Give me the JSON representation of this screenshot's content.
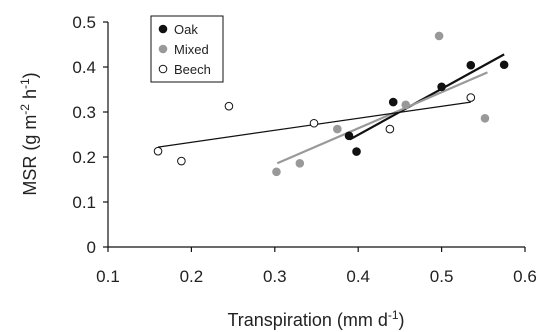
{
  "chart_data": {
    "type": "scatter",
    "title": "",
    "xlabel": {
      "main": "Transpiration (mm d",
      "sup": "-1",
      "close": ")"
    },
    "ylabel": {
      "main": "MSR (g m",
      "sup1": "-2",
      "mid": " h",
      "sup2": "-1",
      "close": ")"
    },
    "xlim": [
      0.1,
      0.6
    ],
    "ylim": [
      0,
      0.5
    ],
    "x_ticks": [
      "0.1",
      "0.2",
      "0.3",
      "0.4",
      "0.5",
      "0.6"
    ],
    "y_ticks": [
      "0",
      "0.1",
      "0.2",
      "0.3",
      "0.4",
      "0.5"
    ],
    "grid": false,
    "legend_position": "top-left",
    "series": [
      {
        "name": "Oak",
        "marker_fill": "#111111",
        "marker_stroke": "#111111",
        "line_color": "#111111",
        "points": [
          {
            "x": 0.389,
            "y": 0.247
          },
          {
            "x": 0.398,
            "y": 0.212
          },
          {
            "x": 0.442,
            "y": 0.322
          },
          {
            "x": 0.5,
            "y": 0.356
          },
          {
            "x": 0.535,
            "y": 0.404
          },
          {
            "x": 0.575,
            "y": 0.405
          }
        ],
        "fit": {
          "x": [
            0.39,
            0.575
          ],
          "y": [
            0.239,
            0.428
          ]
        }
      },
      {
        "name": "Mixed",
        "marker_fill": "#999999",
        "marker_stroke": "#999999",
        "line_color": "#999999",
        "points": [
          {
            "x": 0.302,
            "y": 0.167
          },
          {
            "x": 0.33,
            "y": 0.186
          },
          {
            "x": 0.375,
            "y": 0.262
          },
          {
            "x": 0.457,
            "y": 0.316
          },
          {
            "x": 0.497,
            "y": 0.469
          },
          {
            "x": 0.552,
            "y": 0.286
          }
        ],
        "fit": {
          "x": [
            0.303,
            0.555
          ],
          "y": [
            0.186,
            0.388
          ]
        }
      },
      {
        "name": "Beech",
        "marker_fill": "#ffffff",
        "marker_stroke": "#111111",
        "line_color": "#111111",
        "points": [
          {
            "x": 0.16,
            "y": 0.213
          },
          {
            "x": 0.188,
            "y": 0.191
          },
          {
            "x": 0.245,
            "y": 0.313
          },
          {
            "x": 0.347,
            "y": 0.275
          },
          {
            "x": 0.438,
            "y": 0.262
          },
          {
            "x": 0.535,
            "y": 0.332
          }
        ],
        "fit": {
          "x": [
            0.16,
            0.535
          ],
          "y": [
            0.222,
            0.322
          ]
        }
      }
    ]
  }
}
